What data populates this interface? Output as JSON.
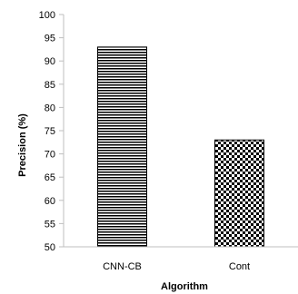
{
  "chart_data": {
    "type": "bar",
    "categories": [
      "CNN-CB",
      "Cont"
    ],
    "values": [
      93,
      73
    ],
    "xlabel": "Algorithm",
    "ylabel": "Precision   (%)",
    "ylim": [
      50,
      100
    ],
    "yticks": [
      50,
      55,
      60,
      65,
      70,
      75,
      80,
      85,
      90,
      95,
      100
    ],
    "grid": false,
    "legend": "none",
    "fills": [
      "horizontal-stripes",
      "checkerboard"
    ],
    "colors": {
      "axis": "#bfbfbf",
      "bar_outline": "#000000",
      "bar_pattern": "#000000"
    }
  }
}
